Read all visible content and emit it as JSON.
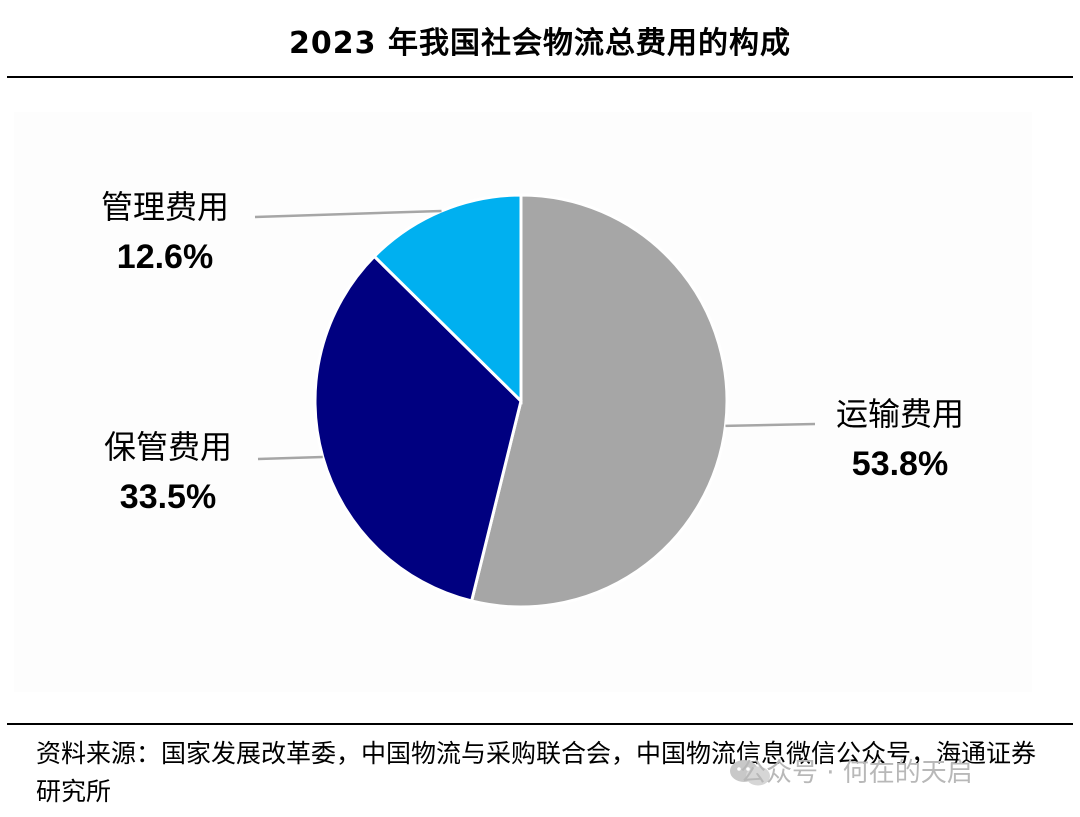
{
  "chart_data": {
    "type": "pie",
    "title": "2023 年我国社会物流总费用的构成",
    "slices": [
      {
        "label": "运输费用",
        "value": 53.8,
        "value_label": "53.8%",
        "color": "#a6a6a6"
      },
      {
        "label": "保管费用",
        "value": 33.5,
        "value_label": "33.5%",
        "color": "#000080"
      },
      {
        "label": "管理费用",
        "value": 12.6,
        "value_label": "12.6%",
        "color": "#00b0f0"
      }
    ],
    "start": "12 o'clock",
    "direction": "clockwise",
    "legend": "none"
  },
  "source": {
    "text": "资料来源：国家发展改革委，中国物流与采购联合会，中国物流信息微信公众号，海通证券研究所"
  },
  "watermark": {
    "text": "公众号 · 何在的天启"
  }
}
